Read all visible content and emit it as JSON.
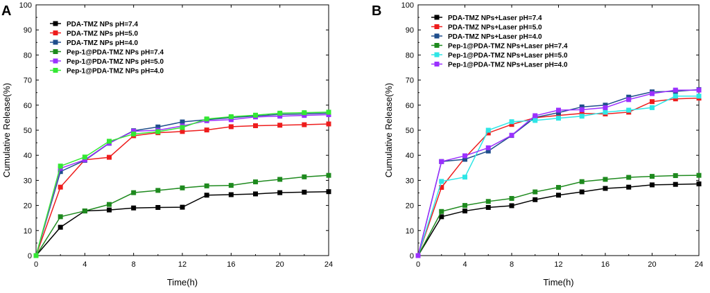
{
  "figure": {
    "panels": [
      {
        "letter": "A"
      },
      {
        "letter": "B"
      }
    ]
  },
  "chart_data": [
    {
      "panel": "A",
      "type": "line",
      "title": "",
      "xlabel": "Time(h)",
      "ylabel": "Cumulative Release(%)",
      "xlim": [
        0,
        24
      ],
      "ylim": [
        0,
        100
      ],
      "xticks": [
        0,
        4,
        8,
        12,
        16,
        20,
        24
      ],
      "yticks": [
        0,
        10,
        20,
        30,
        40,
        50,
        60,
        70,
        80,
        90,
        100
      ],
      "legend_position": "top-left",
      "x": [
        0,
        2,
        4,
        6,
        8,
        10,
        12,
        14,
        16,
        18,
        20,
        22,
        24
      ],
      "series": [
        {
          "name": "PDA-TMZ NPs pH=7.4",
          "color": "#000000",
          "values": [
            0,
            11.3,
            17.8,
            18.2,
            19.0,
            19.2,
            19.3,
            24.1,
            24.3,
            24.6,
            25.1,
            25.3,
            25.5
          ]
        },
        {
          "name": "PDA-TMZ NPs pH=5.0",
          "color": "#ee1c1c",
          "values": [
            0,
            27.3,
            38.2,
            39.2,
            47.8,
            49.0,
            49.5,
            50.1,
            51.4,
            51.8,
            52.0,
            52.2,
            52.5
          ]
        },
        {
          "name": "PDA-TMZ NPs pH=4.0",
          "color": "#1f4e8c",
          "values": [
            0,
            33.5,
            38.0,
            44.8,
            49.8,
            51.3,
            53.3,
            54.2,
            55.0,
            55.7,
            56.3,
            56.5,
            56.8
          ]
        },
        {
          "name": "Pep-1@PDA-TMZ NPs pH=7.4",
          "color": "#1e8a1e",
          "values": [
            0,
            15.5,
            17.8,
            20.4,
            25.1,
            26.0,
            27.0,
            27.8,
            28.0,
            29.4,
            30.4,
            31.4,
            32.0
          ]
        },
        {
          "name": "Pep-1@PDA-TMZ NPs pH=5.0",
          "color": "#9b30ff",
          "values": [
            0,
            34.8,
            38.2,
            44.9,
            49.6,
            50.0,
            51.7,
            53.8,
            54.2,
            55.3,
            55.6,
            55.9,
            56.2
          ]
        },
        {
          "name": "Pep-1@PDA-TMZ NPs pH=4.0",
          "color": "#33e833",
          "values": [
            0,
            35.7,
            39.3,
            45.6,
            48.5,
            49.4,
            51.1,
            54.5,
            55.4,
            56.0,
            56.8,
            57.0,
            57.2
          ]
        }
      ]
    },
    {
      "panel": "B",
      "type": "line",
      "title": "",
      "xlabel": "Time(h)",
      "ylabel": "Cumulative Release(%)",
      "xlim": [
        0,
        24
      ],
      "ylim": [
        0,
        100
      ],
      "xticks": [
        0,
        4,
        8,
        12,
        16,
        20,
        24
      ],
      "yticks": [
        0,
        10,
        20,
        30,
        40,
        50,
        60,
        70,
        80,
        90,
        100
      ],
      "legend_position": "top-left",
      "x": [
        0,
        2,
        4,
        6,
        8,
        10,
        12,
        14,
        16,
        18,
        20,
        22,
        24
      ],
      "series": [
        {
          "name": "PDA-TMZ NPs+Laser pH=7.4",
          "color": "#000000",
          "values": [
            0,
            15.5,
            17.8,
            19.2,
            19.9,
            22.3,
            24.1,
            25.4,
            26.8,
            27.3,
            28.2,
            28.4,
            28.6
          ]
        },
        {
          "name": "PDA-TMZ NPs+Laser pH=5.0",
          "color": "#ee1c1c",
          "values": [
            0,
            27.2,
            39.0,
            48.9,
            52.3,
            55.0,
            55.9,
            56.7,
            56.5,
            57.2,
            61.4,
            62.5,
            62.8
          ]
        },
        {
          "name": "PDA-TMZ NPs+Laser pH=4.0",
          "color": "#1f4e8c",
          "values": [
            0,
            37.5,
            38.4,
            41.7,
            47.9,
            55.1,
            57.0,
            59.3,
            60.0,
            63.2,
            65.3,
            65.5,
            66.2
          ]
        },
        {
          "name": "Pep-1@PDA-TMZ NPs+Laser pH=7.4",
          "color": "#1e8a1e",
          "values": [
            0,
            17.6,
            20.0,
            21.6,
            22.8,
            25.4,
            27.2,
            29.5,
            30.4,
            31.2,
            31.6,
            31.9,
            32.0
          ]
        },
        {
          "name": "Pep-1@PDA-TMZ NPs+Laser pH=5.0",
          "color": "#2ee6e6",
          "values": [
            0,
            29.6,
            31.3,
            50.0,
            53.4,
            53.9,
            54.8,
            55.6,
            57.2,
            58.0,
            59.0,
            63.6,
            63.6
          ]
        },
        {
          "name": "Pep-1@PDA-TMZ NPs+Laser pH=4.0",
          "color": "#9b30ff",
          "values": [
            0,
            37.5,
            39.8,
            43.0,
            48.0,
            55.8,
            58.0,
            58.2,
            59.0,
            62.2,
            64.6,
            66.0,
            66.0
          ]
        }
      ]
    }
  ]
}
